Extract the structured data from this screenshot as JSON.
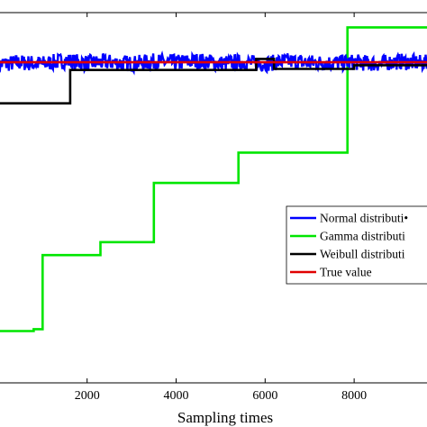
{
  "chart_data": {
    "type": "line",
    "xlabel": "Sampling times",
    "ylabel": "",
    "title": "",
    "xlim": [
      -200,
      9900
    ],
    "ylim": [
      0,
      1
    ],
    "xticks": [
      2000,
      4000,
      6000,
      8000
    ],
    "grid": false,
    "legend_placement": "right",
    "series": [
      {
        "name": "Normal distributi•",
        "color": "#0000ff",
        "noise_amp": 0.022,
        "x": [
          0,
          500,
          1000,
          1500,
          2000,
          2500,
          3000,
          3500,
          4000,
          4500,
          5000,
          5500,
          6000,
          6500,
          7000,
          7500,
          8000,
          8500,
          9000,
          9500,
          9900
        ],
        "y": [
          0.86,
          0.865,
          0.862,
          0.87,
          0.864,
          0.866,
          0.862,
          0.868,
          0.865,
          0.87,
          0.863,
          0.866,
          0.862,
          0.869,
          0.865,
          0.864,
          0.866,
          0.862,
          0.868,
          0.864,
          0.866
        ]
      },
      {
        "name": "Gamma distributi",
        "color": "#00e600",
        "step": true,
        "x": [
          -200,
          0,
          800,
          1000,
          2300,
          3500,
          4600,
          5400,
          7200,
          7850,
          8250,
          9900
        ],
        "y": [
          0.0,
          0.14,
          0.145,
          0.345,
          0.38,
          0.54,
          0.54,
          0.622,
          0.622,
          0.96,
          0.96,
          0.96
        ]
      },
      {
        "name": "Weibull distributi",
        "color": "#000000",
        "step": true,
        "x": [
          -200,
          1620,
          1620,
          2000,
          4500,
          5800,
          6200,
          7000,
          8000,
          9500,
          9900
        ],
        "y": [
          0.755,
          0.755,
          0.845,
          0.845,
          0.845,
          0.875,
          0.848,
          0.848,
          0.858,
          0.858,
          0.858
        ]
      },
      {
        "name": "True value",
        "color": "#e00000",
        "x": [
          -200,
          9900
        ],
        "y": [
          0.866,
          0.866
        ]
      }
    ]
  }
}
